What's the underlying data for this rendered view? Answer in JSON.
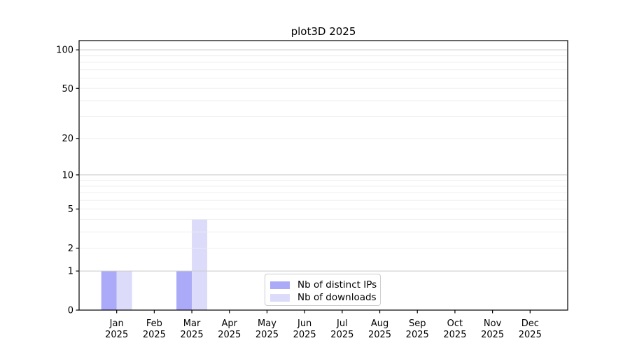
{
  "chart_data": {
    "type": "bar",
    "title": "plot3D 2025",
    "categories": [
      "Jan",
      "Feb",
      "Mar",
      "Apr",
      "May",
      "Jun",
      "Jul",
      "Aug",
      "Sep",
      "Oct",
      "Nov",
      "Dec"
    ],
    "category_year": "2025",
    "series": [
      {
        "name": "Nb of distinct IPs",
        "color": "#aaaaf8",
        "values": [
          1,
          0,
          1,
          0,
          0,
          0,
          0,
          0,
          0,
          0,
          0,
          0
        ]
      },
      {
        "name": "Nb of downloads",
        "color": "#dcdcfa",
        "values": [
          1,
          0,
          4,
          0,
          0,
          0,
          0,
          0,
          0,
          0,
          0,
          0
        ]
      }
    ],
    "xlabel": "",
    "ylabel": "",
    "yscale": "log1p",
    "ylim": [
      0,
      118
    ],
    "y_ticks": [
      0,
      1,
      2,
      5,
      10,
      20,
      50,
      100
    ],
    "y_major_gridlines": [
      1,
      10,
      100
    ],
    "y_minor_gridlines": [
      2,
      3,
      4,
      5,
      6,
      7,
      8,
      9,
      20,
      30,
      40,
      50,
      60,
      70,
      80,
      90
    ],
    "grid": "horizontal",
    "legend_position": "inside-bottom-center",
    "colors": {
      "axis": "#000000",
      "tick_text": "#000000",
      "major_grid": "#c9c9c9",
      "minor_grid": "#ececec",
      "background": "#ffffff"
    }
  }
}
